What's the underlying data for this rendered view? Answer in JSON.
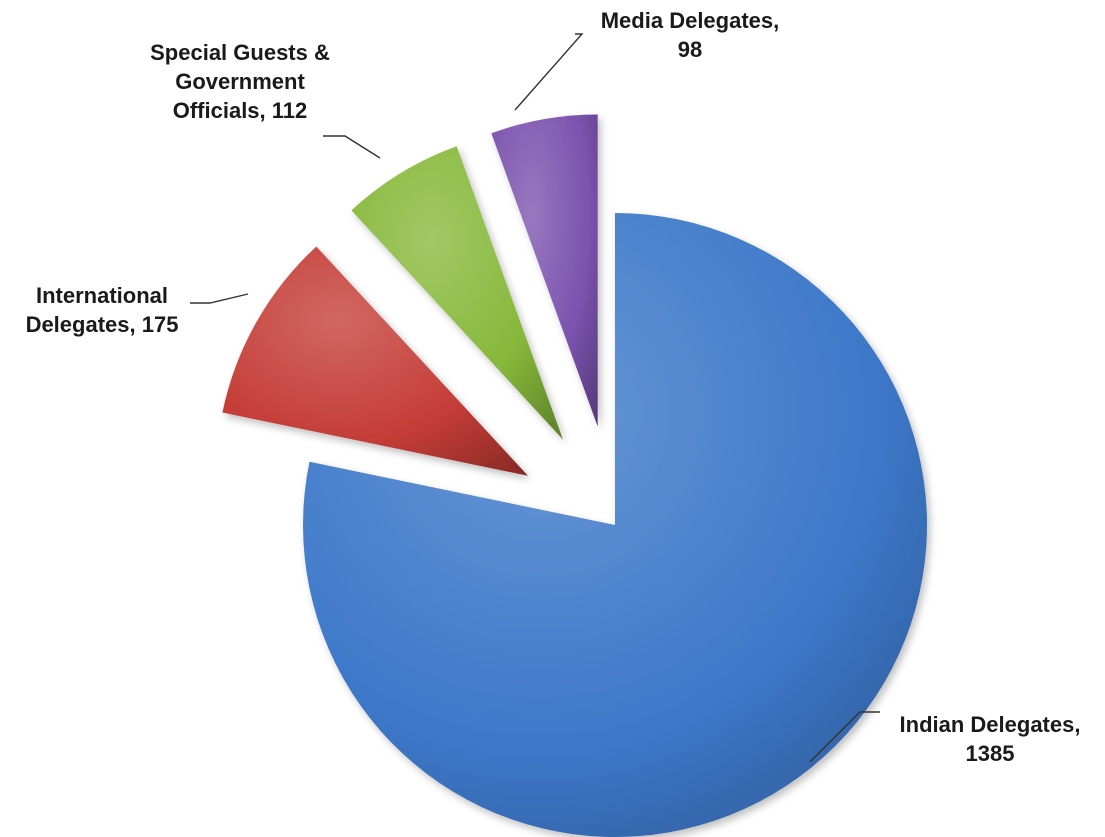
{
  "chart_data": {
    "type": "pie",
    "title": "",
    "series": [
      {
        "values": [
          1385,
          175,
          112,
          98
        ]
      }
    ],
    "categories": [
      "Indian Delegates",
      "International Delegates",
      "Special Guests & Government Officials",
      "Media Delegates"
    ],
    "exploded": true,
    "style": "3d-gradient",
    "colors": [
      "#3d78c9",
      "#c43c36",
      "#86b83a",
      "#7b52ad"
    ],
    "data_labels": [
      [
        "Indian Delegates,",
        "1385"
      ],
      [
        "International",
        "Delegates, 175"
      ],
      [
        "Special Guests &",
        "Government",
        "Officials, 112"
      ],
      [
        "Media Delegates,",
        "98"
      ]
    ]
  }
}
